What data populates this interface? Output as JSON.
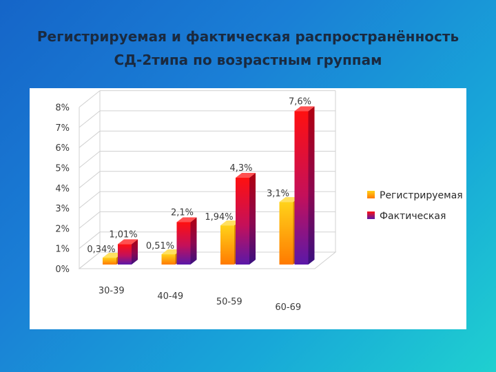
{
  "page": {
    "title_line1": "Регистрируемая и фактическая распространённость",
    "title_line2": "СД-2типа по возрастным группам"
  },
  "chart_data": {
    "type": "bar",
    "categories": [
      "30-39",
      "40-49",
      "50-59",
      "60-69"
    ],
    "series": [
      {
        "name": "Регистрируемая",
        "values": [
          0.34,
          0.51,
          1.94,
          3.1
        ],
        "labels": [
          "0,34%",
          "0,51%",
          "1,94%",
          "3,1%"
        ],
        "color": "#ff9e00"
      },
      {
        "name": "Фактическая",
        "values": [
          1.01,
          2.1,
          4.3,
          7.6
        ],
        "labels": [
          "1,01%",
          "2,1%",
          "4,3%",
          "7,6%"
        ],
        "color": "#c0103a"
      }
    ],
    "yticks": [
      "0%",
      "1%",
      "2%",
      "3%",
      "4%",
      "5%",
      "6%",
      "7%",
      "8%"
    ],
    "ylim": [
      0,
      8
    ],
    "grid": true,
    "legend": "right",
    "three_d": true
  }
}
